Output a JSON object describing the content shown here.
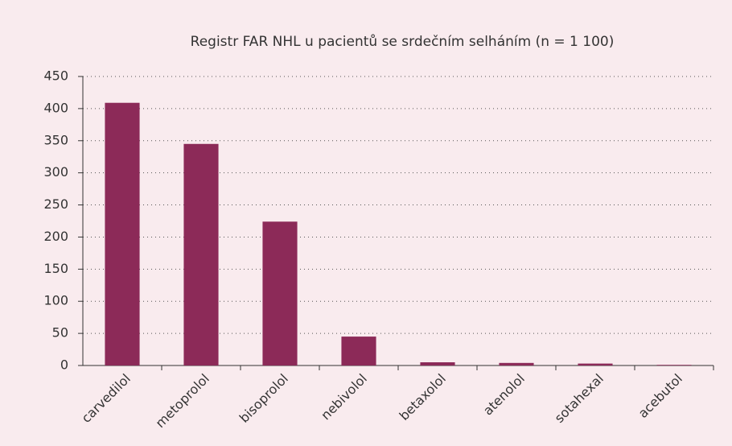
{
  "chart_data": {
    "type": "bar",
    "title": "Registr FAR NHL u pacientů se srdečním selháním (n = 1 100)",
    "categories": [
      "carvedilol",
      "metoprolol",
      "bisoprolol",
      "nebivolol",
      "betaxolol",
      "atenolol",
      "sotahexal",
      "acebutol"
    ],
    "values": [
      409,
      345,
      224,
      45,
      5,
      4,
      3,
      1
    ],
    "color": "#8c2a58",
    "ylim": [
      0,
      450
    ],
    "yticks": [
      0,
      50,
      100,
      150,
      200,
      250,
      300,
      350,
      400,
      450
    ],
    "grid": true
  }
}
